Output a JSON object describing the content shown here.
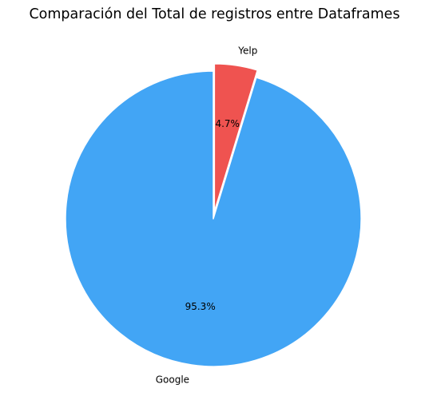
{
  "chart_data": {
    "type": "pie",
    "title": "Comparación del Total de registros entre Dataframes",
    "slices": [
      {
        "label": "Google",
        "value": 95.3,
        "pct_label": "95.3%",
        "color": "#42A5F5",
        "explode": 0
      },
      {
        "label": "Yelp",
        "value": 4.7,
        "pct_label": "4.7%",
        "color": "#EF5350",
        "explode": 0.05
      }
    ],
    "start_angle_deg": 90,
    "direction": "counterclockwise",
    "edge_color": "#ffffff"
  }
}
